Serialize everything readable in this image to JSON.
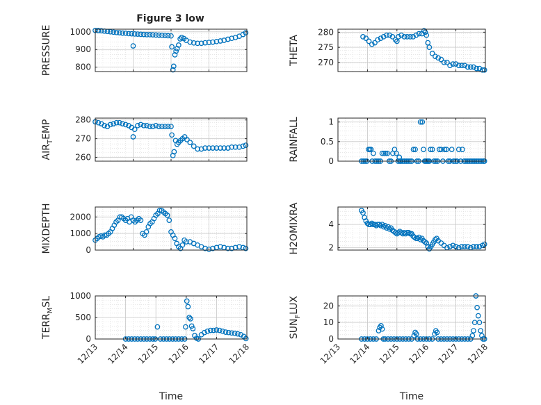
{
  "figure": {
    "title": "Figure 3 low",
    "marker_color": "#0072bd",
    "axis_color": "#262626",
    "grid_color": "#d9d9d9"
  },
  "chart_data": [
    {
      "id": "pressure",
      "type": "scatter",
      "ylabel": "PRESSURE",
      "xlabel": "",
      "xlim": [
        14.0,
        18.0
      ],
      "ylim": [
        775,
        1015
      ],
      "yticks": [
        800,
        900,
        1000
      ],
      "ytick_labels": [
        "800",
        "900",
        "1000"
      ],
      "xticks": [],
      "xtick_labels": [],
      "grid": true,
      "minor_grid": true,
      "x": [
        14.0,
        14.08,
        14.16,
        14.24,
        14.32,
        14.4,
        14.48,
        14.56,
        14.64,
        14.72,
        14.8,
        14.88,
        14.96,
        15.0,
        15.04,
        15.12,
        15.2,
        15.28,
        15.36,
        15.44,
        15.52,
        15.6,
        15.68,
        15.76,
        15.84,
        15.92,
        16.0,
        16.02,
        16.05,
        16.07,
        16.1,
        16.13,
        16.16,
        16.2,
        16.24,
        16.28,
        16.34,
        16.4,
        16.5,
        16.6,
        16.7,
        16.8,
        16.9,
        17.0,
        17.1,
        17.2,
        17.3,
        17.4,
        17.5,
        17.6,
        17.7,
        17.8,
        17.9,
        17.97
      ],
      "y": [
        1008,
        1007,
        1006,
        1004,
        1002,
        1000,
        998,
        996,
        995,
        993,
        992,
        990,
        989,
        920,
        988,
        987,
        986,
        985,
        984,
        984,
        983,
        982,
        981,
        980,
        979,
        978,
        977,
        915,
        785,
        805,
        870,
        890,
        905,
        925,
        960,
        968,
        962,
        952,
        942,
        937,
        935,
        935,
        938,
        940,
        942,
        945,
        948,
        952,
        958,
        963,
        968,
        975,
        985,
        995
      ]
    },
    {
      "id": "theta",
      "type": "scatter",
      "ylabel": "THETA",
      "xlabel": "",
      "xlim": [
        13.0,
        18.0
      ],
      "ylim": [
        267,
        281
      ],
      "yticks": [
        270,
        275,
        280
      ],
      "ytick_labels": [
        "270",
        "275",
        "280"
      ],
      "xticks": [],
      "xtick_labels": [],
      "grid": true,
      "minor_grid": true,
      "x": [
        13.85,
        13.95,
        14.05,
        14.15,
        14.25,
        14.35,
        14.45,
        14.55,
        14.65,
        14.75,
        14.85,
        14.95,
        15.0,
        15.05,
        15.15,
        15.25,
        15.35,
        15.45,
        15.55,
        15.65,
        15.75,
        15.85,
        15.92,
        15.96,
        16.0,
        16.05,
        16.1,
        16.2,
        16.3,
        16.4,
        16.5,
        16.6,
        16.7,
        16.8,
        16.9,
        17.0,
        17.1,
        17.2,
        17.3,
        17.4,
        17.5,
        17.6,
        17.7,
        17.8,
        17.9,
        17.97
      ],
      "y": [
        278.5,
        278,
        277,
        276,
        276.5,
        277.5,
        278,
        278.5,
        279,
        279,
        278.5,
        277.5,
        277,
        278.5,
        279,
        278.5,
        278.5,
        278.5,
        278.5,
        279,
        279.5,
        279.5,
        280.5,
        280,
        279,
        276.5,
        275,
        273,
        272,
        271.5,
        271,
        270,
        270,
        269,
        269.5,
        269.5,
        269,
        269,
        269,
        268.5,
        268.5,
        268.5,
        268,
        268,
        267.5,
        267.5
      ]
    },
    {
      "id": "air_temp",
      "type": "scatter",
      "ylabel": "AIR_TEMP",
      "xlabel": "",
      "xlim": [
        14.0,
        18.0
      ],
      "ylim": [
        258,
        281
      ],
      "yticks": [
        260,
        270,
        280
      ],
      "ytick_labels": [
        "260",
        "270",
        "280"
      ],
      "xticks": [],
      "xtick_labels": [],
      "grid": true,
      "minor_grid": true,
      "x": [
        14.0,
        14.08,
        14.16,
        14.24,
        14.32,
        14.4,
        14.48,
        14.56,
        14.64,
        14.72,
        14.8,
        14.88,
        14.96,
        15.0,
        15.04,
        15.12,
        15.2,
        15.28,
        15.36,
        15.44,
        15.52,
        15.6,
        15.68,
        15.76,
        15.84,
        15.92,
        16.0,
        16.02,
        16.05,
        16.08,
        16.12,
        16.16,
        16.2,
        16.25,
        16.3,
        16.36,
        16.42,
        16.5,
        16.6,
        16.7,
        16.8,
        16.9,
        17.0,
        17.1,
        17.2,
        17.3,
        17.4,
        17.5,
        17.6,
        17.7,
        17.8,
        17.9,
        17.97
      ],
      "y": [
        279,
        278.5,
        278,
        277,
        276.5,
        277.5,
        278,
        278.5,
        278.5,
        278,
        277.5,
        277,
        276,
        271,
        275,
        277,
        277.5,
        277,
        277,
        276.5,
        276.5,
        277,
        276.5,
        276.5,
        276.5,
        276.5,
        276.5,
        272,
        261,
        263,
        269,
        267,
        268,
        269,
        270,
        271,
        269.5,
        268,
        266,
        264.5,
        264.5,
        265,
        265,
        265,
        265,
        265,
        265,
        265,
        265.5,
        265.5,
        265.5,
        266,
        266.5
      ]
    },
    {
      "id": "rainfall",
      "type": "scatter",
      "ylabel": "RAINFALL",
      "xlabel": "",
      "xlim": [
        13.0,
        18.0
      ],
      "ylim": [
        0,
        1.1
      ],
      "yticks": [
        0,
        0.5,
        1
      ],
      "ytick_labels": [
        "0",
        "0.5",
        "1"
      ],
      "xticks": [],
      "xtick_labels": [],
      "grid": true,
      "minor_grid": true,
      "x": [
        13.8,
        13.86,
        13.92,
        13.98,
        14.04,
        14.08,
        14.12,
        14.16,
        14.2,
        14.26,
        14.32,
        14.38,
        14.44,
        14.5,
        14.56,
        14.62,
        14.68,
        14.74,
        14.8,
        14.86,
        14.92,
        14.98,
        15.04,
        15.08,
        15.1,
        15.14,
        15.2,
        15.26,
        15.32,
        15.38,
        15.44,
        15.5,
        15.56,
        15.62,
        15.68,
        15.74,
        15.8,
        15.86,
        15.9,
        15.94,
        15.98,
        16.02,
        16.06,
        16.1,
        16.14,
        16.2,
        16.26,
        16.32,
        16.38,
        16.44,
        16.5,
        16.56,
        16.62,
        16.68,
        16.74,
        16.8,
        16.86,
        16.92,
        16.98,
        17.04,
        17.1,
        17.16,
        17.22,
        17.28,
        17.34,
        17.4,
        17.46,
        17.52,
        17.58,
        17.64,
        17.7,
        17.76,
        17.82,
        17.88,
        17.94,
        17.97
      ],
      "y": [
        0,
        0,
        0,
        0,
        0.3,
        0.3,
        0.3,
        0,
        0.2,
        0,
        0,
        0,
        0,
        0.2,
        0.2,
        0.2,
        0.2,
        0,
        0,
        0.2,
        0.3,
        0.2,
        0,
        0.1,
        0,
        0,
        0,
        0,
        0,
        0,
        0,
        0,
        0.3,
        0.3,
        0,
        0,
        1,
        1,
        0.3,
        0,
        0,
        0,
        0,
        0,
        0.3,
        0.3,
        0,
        0,
        0,
        0.3,
        0.3,
        0,
        0.3,
        0.3,
        0,
        0,
        0.3,
        0,
        0,
        0,
        0.3,
        0,
        0.3,
        0,
        0,
        0,
        0,
        0,
        0,
        0,
        0,
        0,
        0,
        0,
        0,
        0
      ]
    },
    {
      "id": "mixdepth",
      "type": "scatter",
      "ylabel": "MIXDEPTH",
      "xlabel": "",
      "xlim": [
        14.0,
        18.0
      ],
      "ylim": [
        0,
        2600
      ],
      "yticks": [
        0,
        1000,
        2000
      ],
      "ytick_labels": [
        "0",
        "1000",
        "2000"
      ],
      "xticks": [],
      "xtick_labels": [],
      "grid": true,
      "minor_grid": true,
      "x": [
        14.0,
        14.05,
        14.1,
        14.15,
        14.2,
        14.25,
        14.3,
        14.35,
        14.4,
        14.45,
        14.5,
        14.55,
        14.6,
        14.65,
        14.7,
        14.75,
        14.8,
        14.85,
        14.9,
        14.95,
        15.0,
        15.05,
        15.1,
        15.15,
        15.2,
        15.25,
        15.3,
        15.35,
        15.4,
        15.45,
        15.5,
        15.55,
        15.6,
        15.65,
        15.7,
        15.75,
        15.8,
        15.85,
        15.9,
        15.95,
        16.0,
        16.05,
        16.1,
        16.15,
        16.2,
        16.25,
        16.3,
        16.35,
        16.4,
        16.5,
        16.6,
        16.7,
        16.8,
        16.9,
        17.0,
        17.1,
        17.2,
        17.3,
        17.4,
        17.5,
        17.6,
        17.7,
        17.8,
        17.9,
        17.97
      ],
      "y": [
        600,
        700,
        800,
        850,
        800,
        900,
        900,
        1000,
        1100,
        1300,
        1500,
        1700,
        1800,
        2000,
        2000,
        1900,
        1800,
        1900,
        1700,
        2000,
        1800,
        1700,
        1800,
        1900,
        1800,
        1000,
        900,
        1100,
        1400,
        1600,
        1700,
        1900,
        2100,
        2200,
        2400,
        2400,
        2300,
        2200,
        2100,
        1800,
        1100,
        900,
        700,
        400,
        200,
        100,
        300,
        600,
        500,
        500,
        400,
        300,
        200,
        100,
        50,
        100,
        150,
        200,
        150,
        100,
        100,
        150,
        200,
        150,
        100
      ]
    },
    {
      "id": "h2omixra",
      "type": "scatter",
      "ylabel": "H2OMIXRA",
      "xlabel": "",
      "xlim": [
        13.0,
        18.0
      ],
      "ylim": [
        1.8,
        5.5
      ],
      "yticks": [
        2,
        4
      ],
      "ytick_labels": [
        "2",
        "4"
      ],
      "xticks": [],
      "xtick_labels": [],
      "grid": true,
      "minor_grid": true,
      "x": [
        13.8,
        13.85,
        13.9,
        13.95,
        14.0,
        14.05,
        14.1,
        14.15,
        14.2,
        14.25,
        14.3,
        14.35,
        14.4,
        14.45,
        14.5,
        14.55,
        14.6,
        14.65,
        14.7,
        14.75,
        14.8,
        14.85,
        14.9,
        14.95,
        15.0,
        15.05,
        15.1,
        15.15,
        15.2,
        15.25,
        15.3,
        15.35,
        15.4,
        15.45,
        15.5,
        15.55,
        15.6,
        15.65,
        15.7,
        15.75,
        15.8,
        15.85,
        15.9,
        15.95,
        16.0,
        16.05,
        16.1,
        16.15,
        16.2,
        16.25,
        16.3,
        16.35,
        16.4,
        16.5,
        16.6,
        16.7,
        16.8,
        16.9,
        17.0,
        17.1,
        17.2,
        17.3,
        17.4,
        17.5,
        17.6,
        17.7,
        17.8,
        17.9,
        17.97
      ],
      "y": [
        5.2,
        5.0,
        4.6,
        4.3,
        4.1,
        4.0,
        4.0,
        4.1,
        4.0,
        4.0,
        3.9,
        4.0,
        4.0,
        3.9,
        4.0,
        3.8,
        3.9,
        3.7,
        3.8,
        3.6,
        3.7,
        3.5,
        3.4,
        3.3,
        3.2,
        3.3,
        3.4,
        3.3,
        3.2,
        3.3,
        3.2,
        3.3,
        3.3,
        3.2,
        3.2,
        3.0,
        2.9,
        2.8,
        2.8,
        2.9,
        2.7,
        2.8,
        2.6,
        2.5,
        2.4,
        2.1,
        1.9,
        2.1,
        2.3,
        2.5,
        2.7,
        2.8,
        2.6,
        2.4,
        2.2,
        2.0,
        2.1,
        2.2,
        2.1,
        2.0,
        2.1,
        2.1,
        2.1,
        2.0,
        2.1,
        2.1,
        2.1,
        2.2,
        2.3
      ]
    },
    {
      "id": "terr_msl",
      "type": "scatter",
      "ylabel": "TERR_MSL",
      "xlabel": "Time",
      "xlim": [
        13.0,
        18.0
      ],
      "ylim": [
        0,
        1000
      ],
      "yticks": [
        0,
        500,
        1000
      ],
      "ytick_labels": [
        "0",
        "500",
        "1000"
      ],
      "xticks": [
        13,
        14,
        15,
        16,
        17,
        18
      ],
      "xtick_labels": [
        "12/13",
        "12/14",
        "12/15",
        "12/16",
        "12/17",
        "12/18"
      ],
      "grid": true,
      "minor_grid": true,
      "x": [
        14.0,
        14.1,
        14.2,
        14.3,
        14.4,
        14.5,
        14.6,
        14.7,
        14.8,
        14.9,
        14.98,
        15.05,
        15.15,
        15.25,
        15.35,
        15.45,
        15.55,
        15.65,
        15.75,
        15.85,
        15.95,
        15.98,
        16.02,
        16.06,
        16.1,
        16.14,
        16.18,
        16.22,
        16.28,
        16.34,
        16.4,
        16.5,
        16.6,
        16.7,
        16.8,
        16.9,
        17.0,
        17.1,
        17.2,
        17.3,
        17.4,
        17.5,
        17.6,
        17.7,
        17.8,
        17.9,
        17.97
      ],
      "y": [
        0,
        0,
        0,
        0,
        0,
        0,
        0,
        0,
        0,
        0,
        0,
        280,
        0,
        0,
        0,
        0,
        0,
        0,
        0,
        0,
        0,
        280,
        880,
        750,
        500,
        470,
        300,
        240,
        80,
        20,
        0,
        100,
        150,
        180,
        200,
        200,
        210,
        200,
        180,
        160,
        150,
        140,
        130,
        120,
        100,
        60,
        10
      ]
    },
    {
      "id": "sun_flux",
      "type": "scatter",
      "ylabel": "SUN_FLUX",
      "xlabel": "Time",
      "xlim": [
        13.0,
        18.0
      ],
      "ylim": [
        0,
        26
      ],
      "yticks": [
        0,
        10,
        20
      ],
      "ytick_labels": [
        "0",
        "10",
        "20"
      ],
      "xticks": [
        13,
        14,
        15,
        16,
        17,
        18
      ],
      "xtick_labels": [
        "12/13",
        "12/14",
        "12/15",
        "12/16",
        "12/17",
        "12/18"
      ],
      "grid": true,
      "minor_grid": true,
      "x": [
        13.8,
        13.9,
        14.0,
        14.1,
        14.2,
        14.3,
        14.38,
        14.42,
        14.46,
        14.5,
        14.54,
        14.6,
        14.7,
        14.8,
        14.9,
        15.0,
        15.1,
        15.2,
        15.3,
        15.4,
        15.5,
        15.58,
        15.62,
        15.66,
        15.7,
        15.8,
        15.9,
        16.0,
        16.1,
        16.2,
        16.28,
        16.32,
        16.36,
        16.4,
        16.5,
        16.6,
        16.7,
        16.8,
        16.9,
        17.0,
        17.1,
        17.2,
        17.3,
        17.4,
        17.5,
        17.56,
        17.6,
        17.64,
        17.68,
        17.72,
        17.76,
        17.8,
        17.84,
        17.88,
        17.92,
        17.97
      ],
      "y": [
        0,
        0,
        0,
        0,
        0,
        0,
        5,
        7,
        8,
        6,
        0,
        0,
        0,
        0,
        0,
        0,
        0,
        0,
        0,
        0,
        0,
        2,
        4,
        3,
        0,
        0,
        0,
        0,
        0,
        0,
        3,
        5,
        4,
        0,
        0,
        0,
        0,
        0,
        0,
        0,
        0,
        0,
        0,
        0,
        0,
        2,
        5,
        10,
        26,
        19,
        14,
        10,
        5,
        2,
        0,
        0
      ]
    }
  ]
}
